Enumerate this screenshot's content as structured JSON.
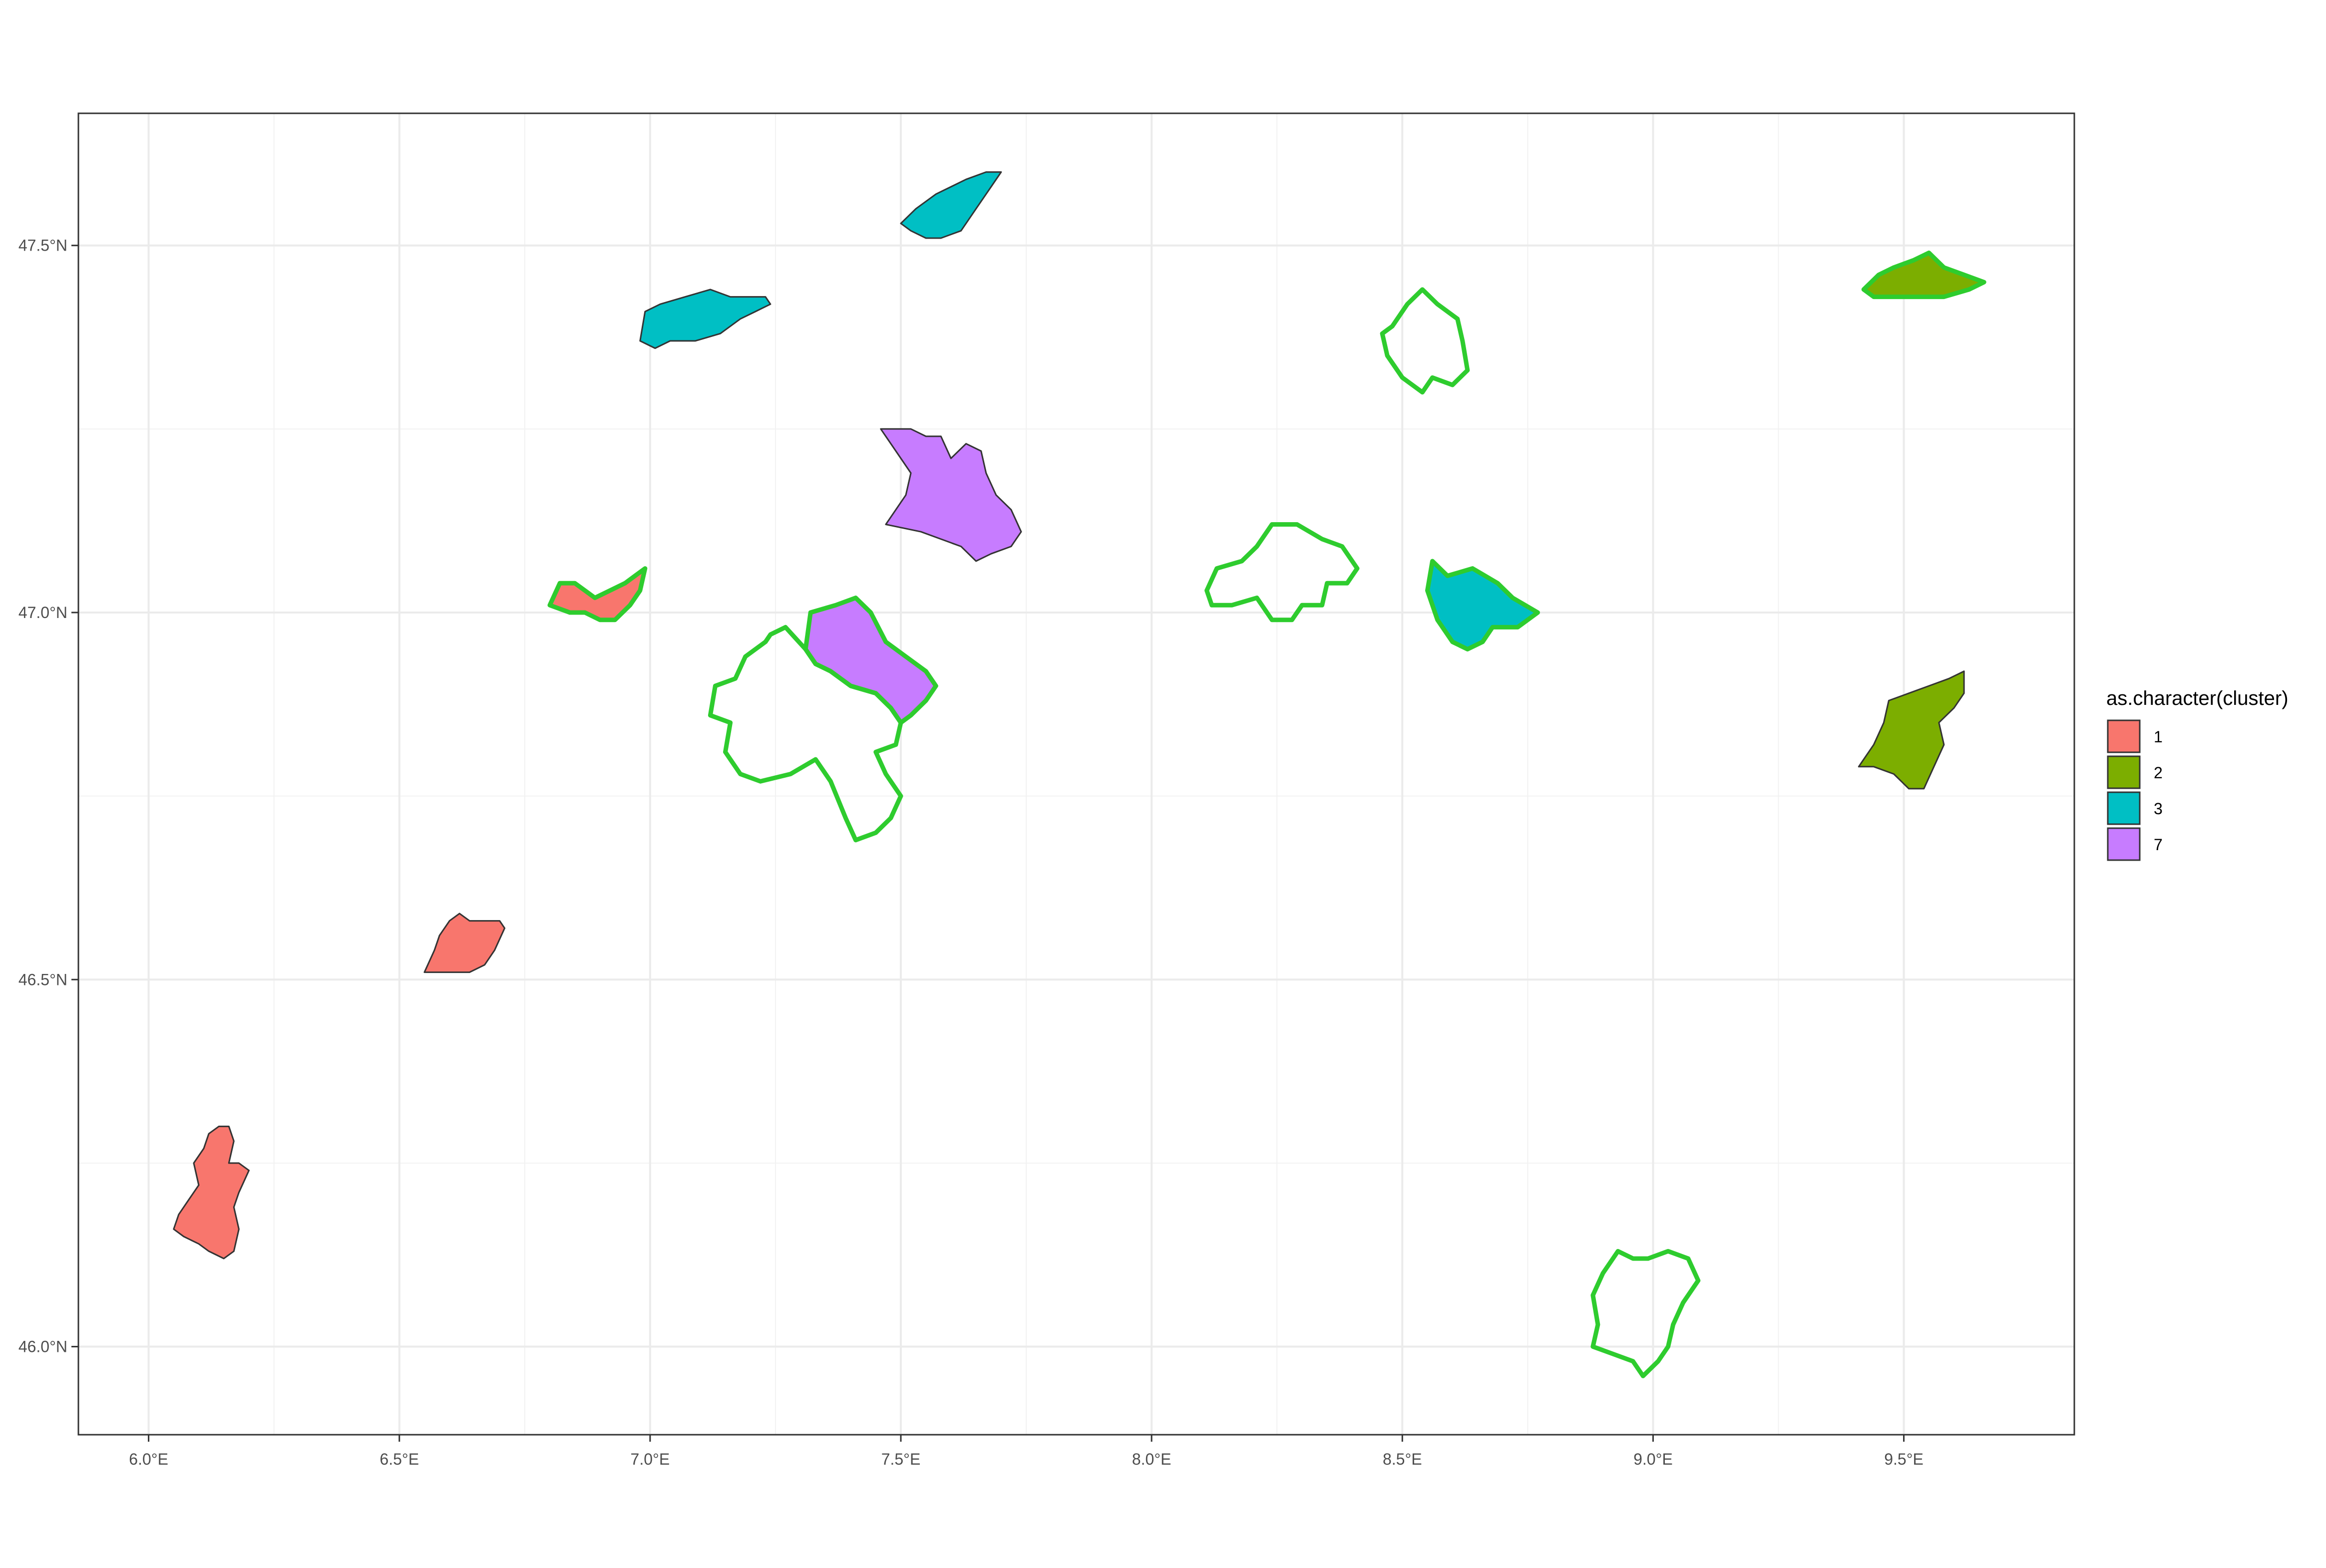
{
  "chart_data": {
    "type": "map",
    "title": "",
    "xlabel": "",
    "ylabel": "",
    "xlim": [
      5.86,
      9.84
    ],
    "ylim": [
      45.88,
      47.68
    ],
    "grid": true,
    "x_ticks": [
      {
        "value": 6.0,
        "label": "6.0°E"
      },
      {
        "value": 6.5,
        "label": "6.5°E"
      },
      {
        "value": 7.0,
        "label": "7.0°E"
      },
      {
        "value": 7.5,
        "label": "7.5°E"
      },
      {
        "value": 8.0,
        "label": "8.0°E"
      },
      {
        "value": 8.5,
        "label": "8.5°E"
      },
      {
        "value": 9.0,
        "label": "9.0°E"
      },
      {
        "value": 9.5,
        "label": "9.5°E"
      }
    ],
    "y_ticks": [
      {
        "value": 46.0,
        "label": "46.0°N"
      },
      {
        "value": 46.5,
        "label": "46.5°N"
      },
      {
        "value": 47.0,
        "label": "47.0°N"
      },
      {
        "value": 47.5,
        "label": "47.5°N"
      }
    ],
    "legend": {
      "title": "as.character(cluster)",
      "placement": "right",
      "entries": [
        {
          "label": "1",
          "color": "#F8766D"
        },
        {
          "label": "2",
          "color": "#7CAE00"
        },
        {
          "label": "3",
          "color": "#00BFC4"
        },
        {
          "label": "7",
          "color": "#C77CFF"
        }
      ]
    },
    "highlight_color": "#2ECC2E",
    "regions": [
      {
        "cluster": "1",
        "fill": "#F8766D",
        "highlighted": false,
        "coords": [
          [
            6.06,
            46.18
          ],
          [
            6.08,
            46.2
          ],
          [
            6.1,
            46.22
          ],
          [
            6.09,
            46.25
          ],
          [
            6.11,
            46.27
          ],
          [
            6.12,
            46.29
          ],
          [
            6.14,
            46.3
          ],
          [
            6.16,
            46.3
          ],
          [
            6.17,
            46.28
          ],
          [
            6.16,
            46.25
          ],
          [
            6.18,
            46.25
          ],
          [
            6.2,
            46.24
          ],
          [
            6.18,
            46.21
          ],
          [
            6.17,
            46.19
          ],
          [
            6.18,
            46.16
          ],
          [
            6.17,
            46.13
          ],
          [
            6.15,
            46.12
          ],
          [
            6.12,
            46.13
          ],
          [
            6.1,
            46.14
          ],
          [
            6.07,
            46.15
          ],
          [
            6.05,
            46.16
          ]
        ]
      },
      {
        "cluster": "1",
        "fill": "#F8766D",
        "highlighted": false,
        "coords": [
          [
            6.55,
            46.51
          ],
          [
            6.57,
            46.54
          ],
          [
            6.58,
            46.56
          ],
          [
            6.6,
            46.58
          ],
          [
            6.62,
            46.59
          ],
          [
            6.64,
            46.58
          ],
          [
            6.67,
            46.58
          ],
          [
            6.7,
            46.58
          ],
          [
            6.71,
            46.57
          ],
          [
            6.69,
            46.54
          ],
          [
            6.67,
            46.52
          ],
          [
            6.64,
            46.51
          ],
          [
            6.61,
            46.51
          ],
          [
            6.58,
            46.51
          ]
        ]
      },
      {
        "cluster": "1",
        "fill": "#F8766D",
        "highlighted": true,
        "coords": [
          [
            6.8,
            47.01
          ],
          [
            6.82,
            47.04
          ],
          [
            6.85,
            47.04
          ],
          [
            6.87,
            47.03
          ],
          [
            6.89,
            47.02
          ],
          [
            6.92,
            47.03
          ],
          [
            6.95,
            47.04
          ],
          [
            6.99,
            47.06
          ],
          [
            6.98,
            47.03
          ],
          [
            6.96,
            47.01
          ],
          [
            6.93,
            46.99
          ],
          [
            6.9,
            46.99
          ],
          [
            6.87,
            47.0
          ],
          [
            6.84,
            47.0
          ]
        ]
      },
      {
        "cluster": "3",
        "fill": "#00BFC4",
        "highlighted": false,
        "coords": [
          [
            6.98,
            47.37
          ],
          [
            6.99,
            47.41
          ],
          [
            7.02,
            47.42
          ],
          [
            7.07,
            47.43
          ],
          [
            7.12,
            47.44
          ],
          [
            7.16,
            47.43
          ],
          [
            7.19,
            47.43
          ],
          [
            7.23,
            47.43
          ],
          [
            7.24,
            47.42
          ],
          [
            7.21,
            47.41
          ],
          [
            7.18,
            47.4
          ],
          [
            7.14,
            47.38
          ],
          [
            7.09,
            47.37
          ],
          [
            7.04,
            47.37
          ],
          [
            7.01,
            47.36
          ]
        ]
      },
      {
        "cluster": "3",
        "fill": "#00BFC4",
        "highlighted": false,
        "coords": [
          [
            7.5,
            47.53
          ],
          [
            7.53,
            47.55
          ],
          [
            7.57,
            47.57
          ],
          [
            7.6,
            47.58
          ],
          [
            7.63,
            47.59
          ],
          [
            7.67,
            47.6
          ],
          [
            7.7,
            47.6
          ],
          [
            7.68,
            47.58
          ],
          [
            7.65,
            47.55
          ],
          [
            7.62,
            47.52
          ],
          [
            7.58,
            47.51
          ],
          [
            7.55,
            47.51
          ],
          [
            7.52,
            47.52
          ]
        ]
      },
      {
        "cluster": "7",
        "fill": "#C77CFF",
        "highlighted": false,
        "coords": [
          [
            7.55,
            47.24
          ],
          [
            7.58,
            47.24
          ],
          [
            7.6,
            47.21
          ],
          [
            7.63,
            47.23
          ],
          [
            7.66,
            47.22
          ],
          [
            7.67,
            47.19
          ],
          [
            7.69,
            47.16
          ],
          [
            7.72,
            47.14
          ],
          [
            7.74,
            47.11
          ],
          [
            7.72,
            47.09
          ],
          [
            7.68,
            47.08
          ],
          [
            7.65,
            47.07
          ],
          [
            7.62,
            47.09
          ],
          [
            7.58,
            47.1
          ],
          [
            7.54,
            47.11
          ],
          [
            7.47,
            47.12
          ],
          [
            7.51,
            47.16
          ],
          [
            7.52,
            47.19
          ],
          [
            7.49,
            47.22
          ],
          [
            7.46,
            47.25
          ],
          [
            7.52,
            47.25
          ]
        ]
      },
      {
        "cluster": "7",
        "fill": "#C77CFF",
        "highlighted": true,
        "coords": [
          [
            7.32,
            47.0
          ],
          [
            7.37,
            47.01
          ],
          [
            7.41,
            47.02
          ],
          [
            7.44,
            47.0
          ],
          [
            7.47,
            46.96
          ],
          [
            7.51,
            46.94
          ],
          [
            7.55,
            46.92
          ],
          [
            7.57,
            46.9
          ],
          [
            7.55,
            46.88
          ],
          [
            7.52,
            46.86
          ],
          [
            7.5,
            46.85
          ],
          [
            7.48,
            46.87
          ],
          [
            7.45,
            46.89
          ],
          [
            7.4,
            46.9
          ],
          [
            7.36,
            46.92
          ],
          [
            7.33,
            46.93
          ],
          [
            7.31,
            46.95
          ]
        ]
      },
      {
        "cluster": "7",
        "fill": "none",
        "highlighted": true,
        "coords": [
          [
            7.24,
            46.97
          ],
          [
            7.27,
            46.98
          ],
          [
            7.31,
            46.95
          ],
          [
            7.33,
            46.93
          ],
          [
            7.36,
            46.92
          ],
          [
            7.4,
            46.9
          ],
          [
            7.45,
            46.89
          ],
          [
            7.48,
            46.87
          ],
          [
            7.5,
            46.85
          ],
          [
            7.49,
            46.82
          ],
          [
            7.45,
            46.81
          ],
          [
            7.47,
            46.78
          ],
          [
            7.5,
            46.75
          ],
          [
            7.48,
            46.72
          ],
          [
            7.45,
            46.7
          ],
          [
            7.41,
            46.69
          ],
          [
            7.39,
            46.72
          ],
          [
            7.36,
            46.77
          ],
          [
            7.33,
            46.8
          ],
          [
            7.28,
            46.78
          ],
          [
            7.22,
            46.77
          ],
          [
            7.18,
            46.78
          ],
          [
            7.15,
            46.81
          ],
          [
            7.16,
            46.85
          ],
          [
            7.12,
            46.86
          ],
          [
            7.13,
            46.9
          ],
          [
            7.17,
            46.91
          ],
          [
            7.19,
            46.94
          ],
          [
            7.23,
            46.96
          ]
        ]
      },
      {
        "cluster": "7",
        "fill": "none",
        "highlighted": true,
        "coords": [
          [
            8.11,
            47.03
          ],
          [
            8.13,
            47.06
          ],
          [
            8.18,
            47.07
          ],
          [
            8.21,
            47.09
          ],
          [
            8.24,
            47.12
          ],
          [
            8.29,
            47.12
          ],
          [
            8.34,
            47.1
          ],
          [
            8.38,
            47.09
          ],
          [
            8.41,
            47.06
          ],
          [
            8.39,
            47.04
          ],
          [
            8.35,
            47.04
          ],
          [
            8.34,
            47.01
          ],
          [
            8.3,
            47.01
          ],
          [
            8.28,
            46.99
          ],
          [
            8.24,
            46.99
          ],
          [
            8.21,
            47.02
          ],
          [
            8.16,
            47.01
          ],
          [
            8.12,
            47.01
          ]
        ]
      },
      {
        "cluster": "7",
        "fill": "none",
        "highlighted": true,
        "coords": [
          [
            8.46,
            47.38
          ],
          [
            8.48,
            47.39
          ],
          [
            8.51,
            47.42
          ],
          [
            8.54,
            47.44
          ],
          [
            8.57,
            47.42
          ],
          [
            8.61,
            47.4
          ],
          [
            8.62,
            47.37
          ],
          [
            8.63,
            47.33
          ],
          [
            8.6,
            47.31
          ],
          [
            8.56,
            47.32
          ],
          [
            8.54,
            47.3
          ],
          [
            8.5,
            47.32
          ],
          [
            8.47,
            47.35
          ]
        ]
      },
      {
        "cluster": "3",
        "fill": "#00BFC4",
        "highlighted": true,
        "coords": [
          [
            8.56,
            47.07
          ],
          [
            8.59,
            47.05
          ],
          [
            8.64,
            47.06
          ],
          [
            8.69,
            47.04
          ],
          [
            8.72,
            47.02
          ],
          [
            8.77,
            47.0
          ],
          [
            8.73,
            46.98
          ],
          [
            8.68,
            46.98
          ],
          [
            8.66,
            46.96
          ],
          [
            8.63,
            46.95
          ],
          [
            8.6,
            46.96
          ],
          [
            8.57,
            46.99
          ],
          [
            8.55,
            47.03
          ]
        ]
      },
      {
        "cluster": "2",
        "fill": "#7CAE00",
        "highlighted": true,
        "coords": [
          [
            9.42,
            47.44
          ],
          [
            9.45,
            47.46
          ],
          [
            9.48,
            47.47
          ],
          [
            9.52,
            47.48
          ],
          [
            9.55,
            47.49
          ],
          [
            9.58,
            47.47
          ],
          [
            9.62,
            47.46
          ],
          [
            9.66,
            47.45
          ],
          [
            9.63,
            47.44
          ],
          [
            9.58,
            47.43
          ],
          [
            9.53,
            47.43
          ],
          [
            9.48,
            47.43
          ],
          [
            9.44,
            47.43
          ]
        ]
      },
      {
        "cluster": "2",
        "fill": "#7CAE00",
        "highlighted": false,
        "coords": [
          [
            9.41,
            46.79
          ],
          [
            9.44,
            46.82
          ],
          [
            9.46,
            46.85
          ],
          [
            9.47,
            46.88
          ],
          [
            9.51,
            46.89
          ],
          [
            9.55,
            46.9
          ],
          [
            9.59,
            46.91
          ],
          [
            9.62,
            46.92
          ],
          [
            9.62,
            46.89
          ],
          [
            9.6,
            46.87
          ],
          [
            9.57,
            46.85
          ],
          [
            9.58,
            46.82
          ],
          [
            9.56,
            46.79
          ],
          [
            9.54,
            46.76
          ],
          [
            9.51,
            46.76
          ],
          [
            9.48,
            46.78
          ],
          [
            9.44,
            46.79
          ]
        ]
      },
      {
        "cluster": "7",
        "fill": "none",
        "highlighted": true,
        "coords": [
          [
            8.88,
            46.0
          ],
          [
            8.89,
            46.03
          ],
          [
            8.88,
            46.07
          ],
          [
            8.9,
            46.1
          ],
          [
            8.93,
            46.13
          ],
          [
            8.96,
            46.12
          ],
          [
            8.99,
            46.12
          ],
          [
            9.03,
            46.13
          ],
          [
            9.07,
            46.12
          ],
          [
            9.09,
            46.09
          ],
          [
            9.06,
            46.06
          ],
          [
            9.04,
            46.03
          ],
          [
            9.03,
            46.0
          ],
          [
            9.01,
            45.98
          ],
          [
            8.98,
            45.96
          ],
          [
            8.96,
            45.98
          ],
          [
            8.92,
            45.99
          ]
        ]
      }
    ]
  }
}
